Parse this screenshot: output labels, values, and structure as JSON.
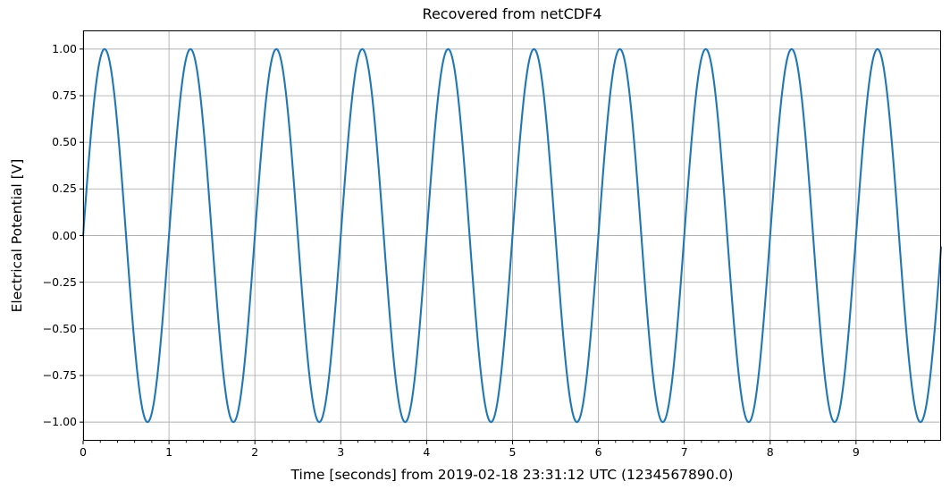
{
  "figure": {
    "background": "#ffffff"
  },
  "chart_data": {
    "type": "line",
    "title": "Recovered from netCDF4",
    "xlabel": "Time [seconds] from 2019-02-18 23:31:12 UTC (1234567890.0)",
    "ylabel": "Electrical Potential [V]",
    "xlim": [
      0,
      9.99
    ],
    "ylim": [
      -1.1,
      1.1
    ],
    "x_ticks": [
      0,
      1,
      2,
      3,
      4,
      5,
      6,
      7,
      8,
      9
    ],
    "x_tick_labels": [
      "0",
      "1",
      "2",
      "3",
      "4",
      "5",
      "6",
      "7",
      "8",
      "9"
    ],
    "x_minor_tick_step": 0.2,
    "y_ticks": [
      1.0,
      0.75,
      0.5,
      0.25,
      0.0,
      -0.25,
      -0.5,
      -0.75,
      -1.0
    ],
    "y_tick_labels": [
      "1.00",
      "0.75",
      "0.50",
      "0.25",
      "0.00",
      "−0.25",
      "−0.50",
      "−0.75",
      "−1.00"
    ],
    "grid": true,
    "legend": "none",
    "line_color": "#1f77b4",
    "line_width": 2.1,
    "grid_color": "#b0b0b0",
    "axis_color": "#000000",
    "series": [
      {
        "name": "electrical-potential",
        "signal": "sine",
        "amplitude": 1.0,
        "frequency_hz": 1.0,
        "phase_rad": 0.0,
        "t_start": 0.0,
        "t_end": 9.99,
        "t_step": 0.01
      }
    ]
  }
}
